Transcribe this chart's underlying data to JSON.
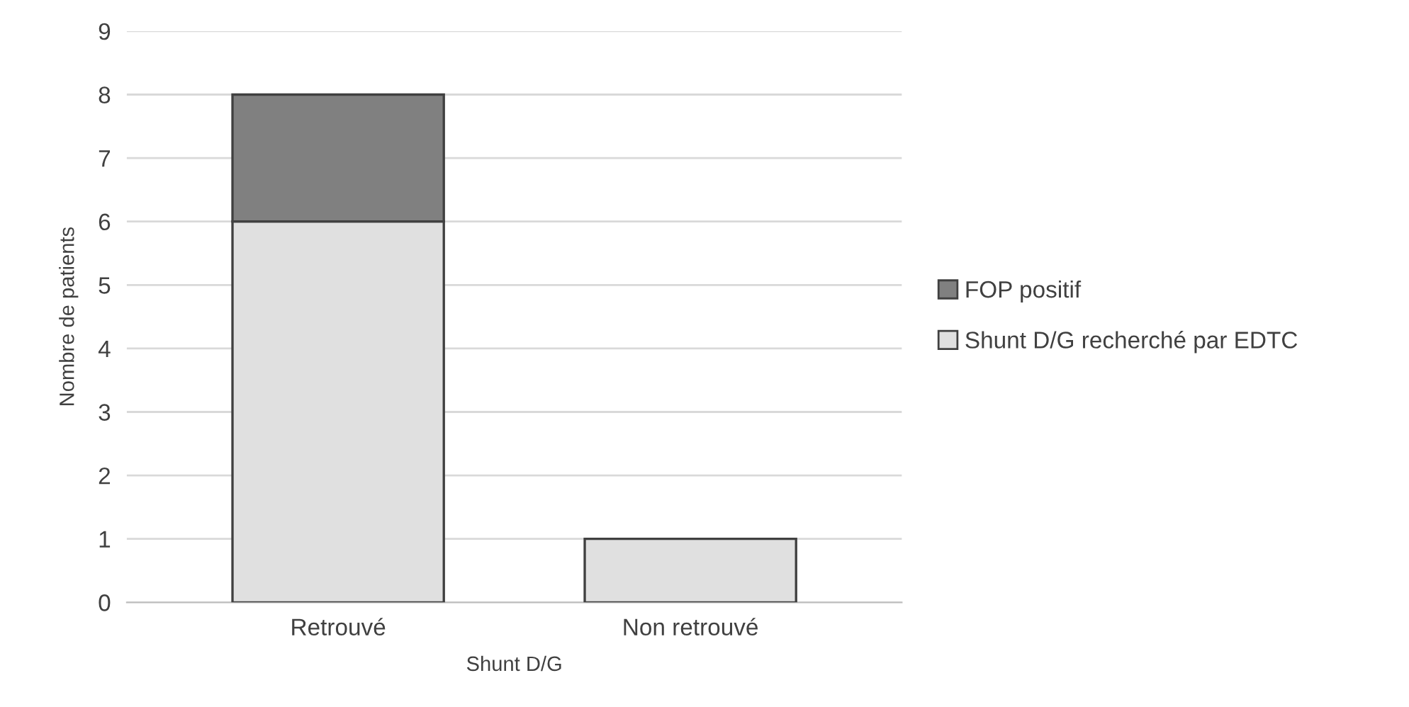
{
  "chart_data": {
    "type": "bar",
    "stacked": true,
    "xlabel": "Shunt D/G",
    "ylabel": "Nombre de patients",
    "categories": [
      "Retrouvé",
      "Non retrouvé"
    ],
    "series": [
      {
        "name": "Shunt D/G recherché par EDTC",
        "color": "#e0e0e0",
        "values": [
          6,
          1
        ]
      },
      {
        "name": "FOP positif",
        "color": "#808080",
        "values": [
          2,
          null
        ]
      }
    ],
    "ylim": [
      0,
      9
    ],
    "yticks": [
      0,
      1,
      2,
      3,
      4,
      5,
      6,
      7,
      8,
      9
    ],
    "grid": "y",
    "legend": "right"
  }
}
